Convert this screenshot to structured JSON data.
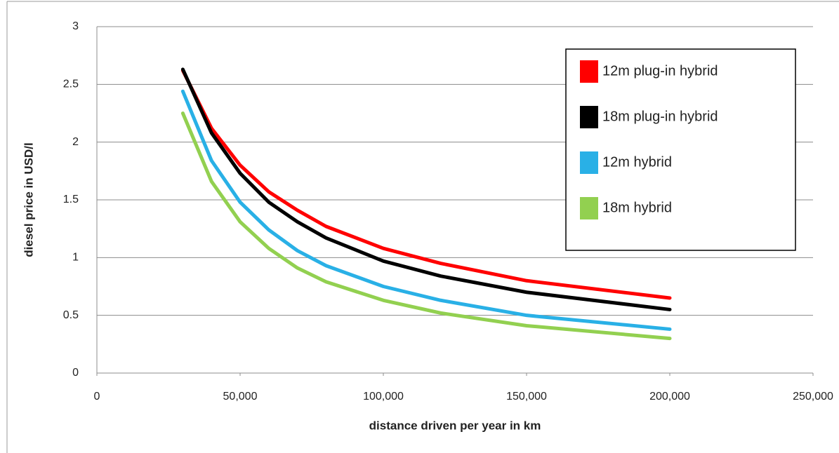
{
  "chart_data": {
    "type": "line",
    "x_label": "distance driven per year in km",
    "y_label": "diesel price in USD/l",
    "xlim": [
      0,
      250000
    ],
    "ylim": [
      0,
      3
    ],
    "xticks": [
      0,
      {
        "value": 50000,
        "label": "50,000"
      },
      {
        "value": 100000,
        "label": "100,000"
      },
      {
        "value": 150000,
        "label": "150,000"
      },
      {
        "value": 200000,
        "label": "200,000"
      },
      {
        "value": 250000,
        "label": "250,000"
      }
    ],
    "yticks": [
      0,
      0.5,
      1,
      1.5,
      2,
      2.5,
      3
    ],
    "grid": true,
    "legend_position": "upper right",
    "x": [
      30000,
      40000,
      50000,
      60000,
      70000,
      80000,
      100000,
      120000,
      150000,
      200000
    ],
    "series": [
      {
        "name": "12m plug-in hybrid",
        "color": "#ff0000",
        "values": [
          2.62,
          2.12,
          1.8,
          1.57,
          1.41,
          1.27,
          1.08,
          0.95,
          0.8,
          0.65
        ]
      },
      {
        "name": "18m plug-in hybrid",
        "color": "#000000",
        "values": [
          2.63,
          2.08,
          1.73,
          1.48,
          1.31,
          1.17,
          0.97,
          0.84,
          0.7,
          0.55
        ]
      },
      {
        "name": "12m hybrid",
        "color": "#29b0e6",
        "values": [
          2.44,
          1.84,
          1.48,
          1.24,
          1.06,
          0.93,
          0.75,
          0.63,
          0.5,
          0.38
        ]
      },
      {
        "name": "18m hybrid",
        "color": "#92d050",
        "values": [
          2.25,
          1.66,
          1.31,
          1.08,
          0.91,
          0.79,
          0.63,
          0.52,
          0.41,
          0.3
        ]
      }
    ]
  }
}
